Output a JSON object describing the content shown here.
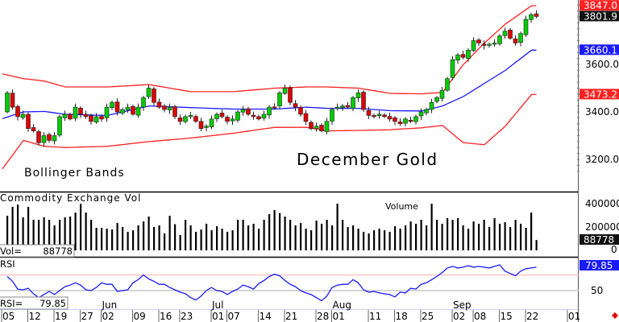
{
  "chart_data": {
    "type": "candlestick",
    "title": "December Gold",
    "annotations": {
      "bands": "Bollinger Bands",
      "volume_panel": "Commodity Exchange Vol",
      "volume_label": "Volume",
      "rsi_panel": "RSI"
    },
    "price_axis": {
      "ylim": [
        3100,
        3870
      ],
      "ticks": [
        "3600.0",
        "3400.0",
        "3200.0"
      ]
    },
    "price_markers": [
      {
        "label": "3847.0",
        "value": 3847.0,
        "color": "#ff2020",
        "text_color": "#ffffff",
        "series": "upper band"
      },
      {
        "label": "3801.9",
        "value": 3801.9,
        "color": "#111111",
        "text_color": "#ffffff",
        "series": "last close"
      },
      {
        "label": "3660.1",
        "value": 3660.1,
        "color": "#1a1aff",
        "text_color": "#ffffff",
        "series": "middle band"
      },
      {
        "label": "3473.2",
        "value": 3473.2,
        "color": "#ff2020",
        "text_color": "#ffffff",
        "series": "lower band"
      }
    ],
    "closes": [
      3480,
      3420,
      3380,
      3390,
      3330,
      3320,
      3270,
      3300,
      3280,
      3300,
      3380,
      3390,
      3370,
      3420,
      3390,
      3380,
      3360,
      3380,
      3370,
      3420,
      3440,
      3400,
      3410,
      3420,
      3390,
      3420,
      3460,
      3500,
      3440,
      3420,
      3410,
      3420,
      3380,
      3360,
      3380,
      3385,
      3360,
      3330,
      3340,
      3370,
      3390,
      3380,
      3360,
      3370,
      3400,
      3410,
      3390,
      3380,
      3370,
      3390,
      3420,
      3420,
      3480,
      3500,
      3440,
      3420,
      3390,
      3360,
      3330,
      3340,
      3320,
      3360,
      3410,
      3420,
      3425,
      3420,
      3460,
      3480,
      3410,
      3385,
      3380,
      3390,
      3380,
      3370,
      3360,
      3350,
      3370,
      3360,
      3380,
      3400,
      3410,
      3440,
      3460,
      3490,
      3540,
      3620,
      3640,
      3630,
      3660,
      3700,
      3690,
      3680,
      3685,
      3690,
      3720,
      3740,
      3710,
      3690,
      3730,
      3790,
      3810,
      3801.9
    ],
    "bollinger": {
      "index": [
        0,
        4,
        8,
        12,
        20,
        28,
        36,
        44,
        52,
        58,
        62,
        68,
        74,
        80,
        84,
        88,
        92,
        96,
        101
      ],
      "upper": [
        3560,
        3540,
        3530,
        3505,
        3505,
        3515,
        3485,
        3485,
        3500,
        3505,
        3505,
        3500,
        3478,
        3476,
        3482,
        3600,
        3690,
        3770,
        3847
      ],
      "middle": [
        3372,
        3400,
        3402,
        3390,
        3385,
        3425,
        3418,
        3412,
        3412,
        3420,
        3415,
        3415,
        3405,
        3404,
        3425,
        3465,
        3520,
        3575,
        3660.1
      ],
      "lower": [
        3160,
        3280,
        3255,
        3250,
        3255,
        3275,
        3290,
        3310,
        3335,
        3335,
        3320,
        3322,
        3325,
        3333,
        3343,
        3270,
        3262,
        3340,
        3473.2
      ]
    },
    "volume": {
      "axis_ticks": [
        "400000",
        "200000",
        "0"
      ],
      "last_label": "Vol=",
      "last_value": "88778",
      "last_marker": "88778",
      "values": [
        297000,
        373000,
        393000,
        283000,
        373000,
        262000,
        262000,
        283000,
        262000,
        214000,
        262000,
        283000,
        290000,
        324000,
        400000,
        324000,
        262000,
        193000,
        193000,
        186000,
        179000,
        235000,
        200000,
        159000,
        172000,
        214000,
        248000,
        290000,
        200000,
        214000,
        145000,
        297000,
        224000,
        131000,
        262000,
        214000,
        159000,
        179000,
        228000,
        172000,
        207000,
        186000,
        159000,
        172000,
        262000,
        262000,
        214000,
        228000,
        186000,
        262000,
        310000,
        345000,
        320000,
        290000,
        262000,
        214000,
        235000,
        186000,
        172000,
        255000,
        228000,
        262000,
        214000,
        400000,
        262000,
        200000,
        214000,
        186000,
        159000,
        145000,
        172000,
        186000,
        172000,
        159000,
        207000,
        186000,
        214000,
        248000,
        228000,
        262000,
        214000,
        400000,
        262000,
        228000,
        276000,
        262000,
        276000,
        214000,
        186000,
        248000,
        228000,
        262000,
        200000,
        276000,
        228000,
        241000,
        200000,
        262000,
        228000,
        193000,
        324000,
        88778
      ]
    },
    "rsi": {
      "axis_ticks": [
        "50"
      ],
      "last_label": "RSI=",
      "last_value": "79.85",
      "last_marker": "79.85",
      "reference_levels": [
        70,
        50
      ],
      "values": [
        68,
        62,
        52,
        51,
        53,
        46,
        41,
        45,
        49,
        45,
        50,
        55,
        57,
        60,
        57,
        51,
        50,
        54,
        60,
        58,
        58,
        49,
        50,
        51,
        60,
        64,
        70,
        65,
        62,
        58,
        58,
        54,
        51,
        48,
        46,
        41,
        38,
        43,
        50,
        54,
        50,
        49,
        45,
        49,
        52,
        57,
        55,
        52,
        59,
        63,
        68,
        71,
        69,
        63,
        58,
        55,
        50,
        47,
        45,
        41,
        37,
        43,
        54,
        57,
        58,
        58,
        64,
        60,
        51,
        48,
        49,
        47,
        46,
        45,
        42,
        48,
        47,
        53,
        52,
        58,
        60,
        64,
        68,
        73,
        79,
        81,
        79,
        80,
        82,
        80,
        81,
        80,
        79,
        81,
        83,
        75,
        72,
        69,
        75,
        78,
        79,
        79.85
      ]
    },
    "x_ticks": [
      {
        "label": "05",
        "index": 0
      },
      {
        "label": "12",
        "index": 5
      },
      {
        "label": "19",
        "index": 10
      },
      {
        "label": "27",
        "index": 15
      },
      {
        "label": "02",
        "index": 19
      },
      {
        "label": "09",
        "index": 25
      },
      {
        "label": "16",
        "index": 30
      },
      {
        "label": "23",
        "index": 34
      },
      {
        "label": "01",
        "index": 40
      },
      {
        "label": "07",
        "index": 43
      },
      {
        "label": "14",
        "index": 49
      },
      {
        "label": "21",
        "index": 54
      },
      {
        "label": "28",
        "index": 60
      },
      {
        "label": "01",
        "index": 63
      },
      {
        "label": "11",
        "index": 70
      },
      {
        "label": "18",
        "index": 75
      },
      {
        "label": "25",
        "index": 80
      },
      {
        "label": "02",
        "index": 86
      },
      {
        "label": "08",
        "index": 90
      },
      {
        "label": "15",
        "index": 95
      },
      {
        "label": "22",
        "index": 100
      },
      {
        "label": "01",
        "index": 108
      }
    ],
    "months": [
      {
        "label": "Jun",
        "index": 19
      },
      {
        "label": "Jul",
        "index": 40
      },
      {
        "label": "Aug",
        "index": 63
      },
      {
        "label": "Sep",
        "index": 86
      }
    ],
    "colors": {
      "up": "#00cc00",
      "down": "#dd0000",
      "band": "#ff2020",
      "middle": "#1a1aff",
      "rsi": "#1a1aff"
    }
  }
}
